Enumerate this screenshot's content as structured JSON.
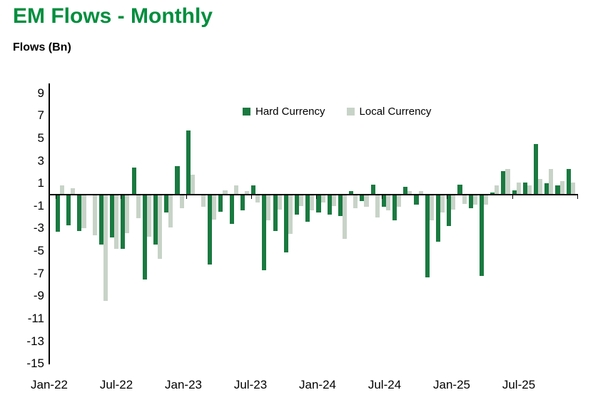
{
  "page": {
    "title": "EM Flows - Monthly",
    "subtitle": "Flows (Bn)"
  },
  "colors": {
    "title_green": "#008E3E",
    "hard_currency": "#1A7A40",
    "local_currency": "#C8D3C8",
    "axis": "#000000"
  },
  "chart_data": {
    "type": "bar",
    "title": "EM Flows - Monthly",
    "ylabel": "Flows (Bn)",
    "grid": false,
    "legend_position": "top-center",
    "ylim": [
      -15,
      9
    ],
    "ytick_step": 2,
    "yticks": [
      9,
      7,
      5,
      3,
      1,
      -1,
      -3,
      -5,
      -7,
      -9,
      -11,
      -13,
      -15
    ],
    "xticks": [
      "Jan-22",
      "Jul-22",
      "Jan-23",
      "Jul-23",
      "Jan-24",
      "Jul-24",
      "Jan-25",
      "Jul-25"
    ],
    "categories": [
      "Jan-22",
      "Feb-22",
      "Mar-22",
      "Apr-22",
      "May-22",
      "Jun-22",
      "Jul-22",
      "Aug-22",
      "Sep-22",
      "Oct-22",
      "Nov-22",
      "Dec-22",
      "Jan-23",
      "Feb-23",
      "Mar-23",
      "Apr-23",
      "May-23",
      "Jun-23",
      "Jul-23",
      "Aug-23",
      "Sep-23",
      "Oct-23",
      "Nov-23",
      "Dec-23",
      "Jan-24",
      "Feb-24",
      "Mar-24",
      "Apr-24",
      "May-24",
      "Jun-24",
      "Jul-24",
      "Aug-24",
      "Sep-24",
      "Oct-24",
      "Nov-24",
      "Dec-24",
      "Jan-25",
      "Feb-25",
      "Mar-25",
      "Apr-25",
      "May-25",
      "Jun-25",
      "Jul-25",
      "Aug-25",
      "Sep-25",
      "Oct-25",
      "Nov-25",
      "Dec-25"
    ],
    "series": [
      {
        "name": "Hard Currency",
        "color": "#1A7A40",
        "values": [
          -3.3,
          -2.7,
          -3.2,
          0,
          -4.4,
          -3.8,
          -4.8,
          2.4,
          -7.5,
          -4.4,
          -1.6,
          2.5,
          5.7,
          0,
          -6.2,
          -1.5,
          -2.6,
          -1.4,
          0.8,
          -6.7,
          -3.2,
          -5.1,
          -1.8,
          -2.4,
          -1.6,
          -1.8,
          -1.9,
          0.3,
          -0.6,
          0.9,
          -1.1,
          -2.3,
          0.7,
          -0.9,
          -7.3,
          -4.2,
          -2.8,
          0.9,
          -1.2,
          -7.2,
          0.2,
          2.1,
          0.4,
          1.1,
          4.5,
          1.0,
          0.8,
          2.3
        ]
      },
      {
        "name": "Local Currency",
        "color": "#C8D3C8",
        "values": [
          0.8,
          0.6,
          -3.0,
          -3.6,
          -9.4,
          -4.8,
          -3.4,
          -2.1,
          -3.7,
          -5.7,
          -2.9,
          -1.2,
          1.8,
          -1.1,
          -2.2,
          0.4,
          0.8,
          0.3,
          -0.7,
          -2.3,
          -1.3,
          -3.5,
          -1.0,
          -1.4,
          -0.7,
          -1.0,
          -3.9,
          -1.2,
          -1.1,
          -2.0,
          -1.4,
          -1.1,
          0.3,
          0.3,
          -2.3,
          -1.6,
          -1.3,
          -0.8,
          -0.9,
          -0.9,
          0.8,
          2.3,
          1.1,
          0.8,
          1.4,
          2.3,
          1.2,
          1.1
        ]
      }
    ]
  }
}
